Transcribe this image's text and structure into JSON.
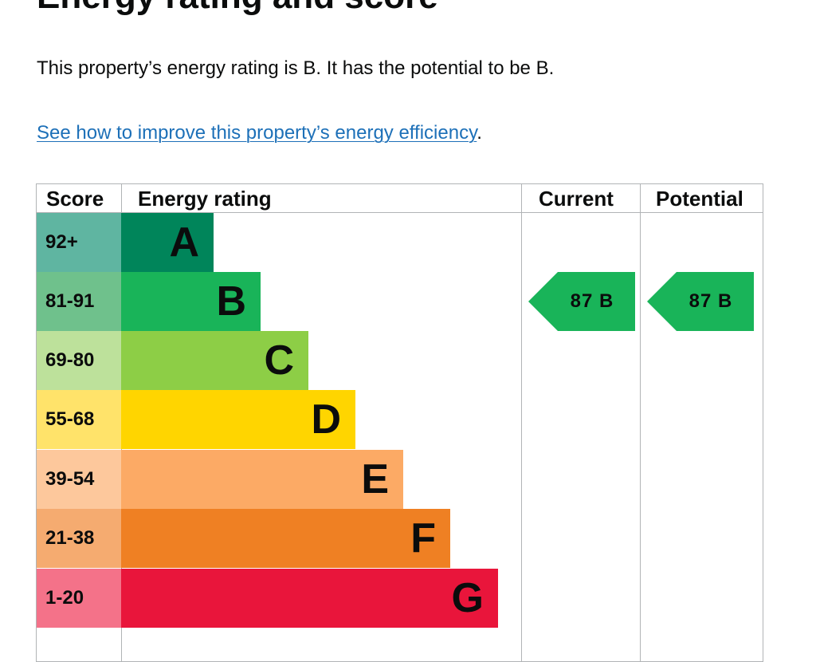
{
  "page": {
    "heading": "Energy rating and score",
    "summary": "This property’s energy rating is B. It has the potential to be B.",
    "improve_link": "See how to improve this property’s energy efficiency",
    "improve_suffix": "."
  },
  "table": {
    "headers": {
      "score": "Score",
      "rating": "Energy rating",
      "current": "Current",
      "potential": "Potential"
    },
    "bands": [
      {
        "score": "92+",
        "letter": "A",
        "bar_color": "#00855a",
        "score_bg": "#5fb5a1"
      },
      {
        "score": "81-91",
        "letter": "B",
        "bar_color": "#19b459",
        "score_bg": "#6fc18c"
      },
      {
        "score": "69-80",
        "letter": "C",
        "bar_color": "#8dce46",
        "score_bg": "#bde19b"
      },
      {
        "score": "55-68",
        "letter": "D",
        "bar_color": "#ffd500",
        "score_bg": "#ffe36a"
      },
      {
        "score": "39-54",
        "letter": "E",
        "bar_color": "#fcaa65",
        "score_bg": "#fdc89c"
      },
      {
        "score": "21-38",
        "letter": "F",
        "bar_color": "#ef8023",
        "score_bg": "#f5ab70"
      },
      {
        "score": "1-20",
        "letter": "G",
        "bar_color": "#e9153b",
        "score_bg": "#f47289"
      }
    ],
    "current": {
      "score": "87",
      "band": "B",
      "label": "87  B",
      "color": "#19b459"
    },
    "potential": {
      "score": "87",
      "band": "B",
      "label": "87  B",
      "color": "#19b459"
    }
  }
}
